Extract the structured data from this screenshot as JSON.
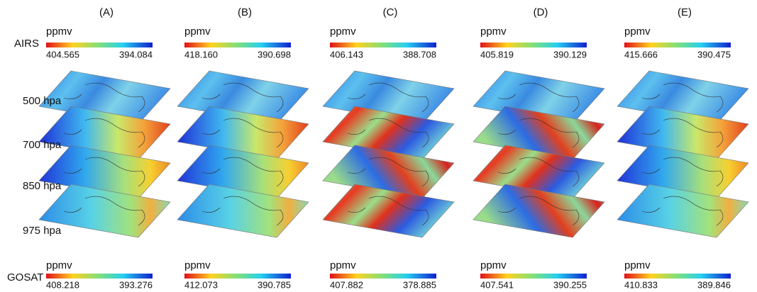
{
  "panels": [
    {
      "label": "(A)",
      "airs": {
        "unit": "ppmv",
        "left": "404.565",
        "right": "394.084"
      },
      "gosat": {
        "unit": "ppmv",
        "left": "408.218",
        "right": "393.276"
      }
    },
    {
      "label": "(B)",
      "airs": {
        "unit": "ppmv",
        "left": "418.160",
        "right": "390.698"
      },
      "gosat": {
        "unit": "ppmv",
        "left": "412.073",
        "right": "390.785"
      }
    },
    {
      "label": "(C)",
      "airs": {
        "unit": "ppmv",
        "left": "406.143",
        "right": "388.708"
      },
      "gosat": {
        "unit": "ppmv",
        "left": "407.882",
        "right": "378.885"
      }
    },
    {
      "label": "(D)",
      "airs": {
        "unit": "ppmv",
        "left": "405.819",
        "right": "390.129"
      },
      "gosat": {
        "unit": "ppmv",
        "left": "407.541",
        "right": "390.255"
      }
    },
    {
      "label": "(E)",
      "airs": {
        "unit": "ppmv",
        "left": "415.666",
        "right": "390.475"
      },
      "gosat": {
        "unit": "ppmv",
        "left": "410.833",
        "right": "389.846"
      }
    }
  ],
  "rows": {
    "airs": "AIRS",
    "gosat": "GOSAT",
    "levels": [
      "500 hpa",
      "700 hpa",
      "850 hpa",
      "975 hpa"
    ]
  }
}
